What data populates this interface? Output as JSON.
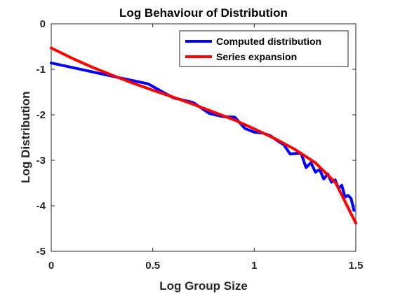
{
  "chart_data": {
    "type": "line",
    "title": "Log Behaviour of Distribution",
    "xlabel": "Log Group Size",
    "ylabel": "Log Distribution",
    "xlim": [
      0,
      1.5
    ],
    "ylim": [
      -5,
      0
    ],
    "xticks": [
      0,
      0.5,
      1,
      1.5
    ],
    "xtick_labels": [
      "0",
      "0.5",
      "1",
      "1.5"
    ],
    "yticks": [
      0,
      -1,
      -2,
      -3,
      -4,
      -5
    ],
    "ytick_labels": [
      "0",
      "-1",
      "-2",
      "-3",
      "-4",
      "-5"
    ],
    "grid": false,
    "legend_position": "top-right",
    "series": [
      {
        "name": "Computed distribution",
        "color": "#0000ff",
        "x": [
          0,
          0.3,
          0.477,
          0.602,
          0.699,
          0.778,
          0.845,
          0.903,
          0.954,
          1.0,
          1.041,
          1.079,
          1.114,
          1.146,
          1.176,
          1.204,
          1.23,
          1.255,
          1.279,
          1.301,
          1.322,
          1.342,
          1.362,
          1.38,
          1.398,
          1.415,
          1.431,
          1.447,
          1.462,
          1.477,
          1.491
        ],
        "y": [
          -0.86,
          -1.15,
          -1.32,
          -1.63,
          -1.73,
          -1.97,
          -2.04,
          -2.05,
          -2.3,
          -2.38,
          -2.4,
          -2.46,
          -2.57,
          -2.66,
          -2.86,
          -2.85,
          -2.84,
          -3.16,
          -3.05,
          -3.26,
          -3.2,
          -3.41,
          -3.3,
          -3.48,
          -3.43,
          -3.62,
          -3.55,
          -3.81,
          -3.77,
          -3.84,
          -4.1
        ]
      },
      {
        "name": "Series expansion",
        "color": "#ff0000",
        "x": [
          0,
          0.1,
          0.2,
          0.3,
          0.4,
          0.5,
          0.6,
          0.7,
          0.8,
          0.9,
          1.0,
          1.1,
          1.2,
          1.3,
          1.4,
          1.5
        ],
        "y": [
          -0.53,
          -0.75,
          -0.95,
          -1.13,
          -1.3,
          -1.46,
          -1.61,
          -1.77,
          -1.94,
          -2.11,
          -2.31,
          -2.52,
          -2.76,
          -3.05,
          -3.49,
          -4.38
        ]
      }
    ]
  }
}
